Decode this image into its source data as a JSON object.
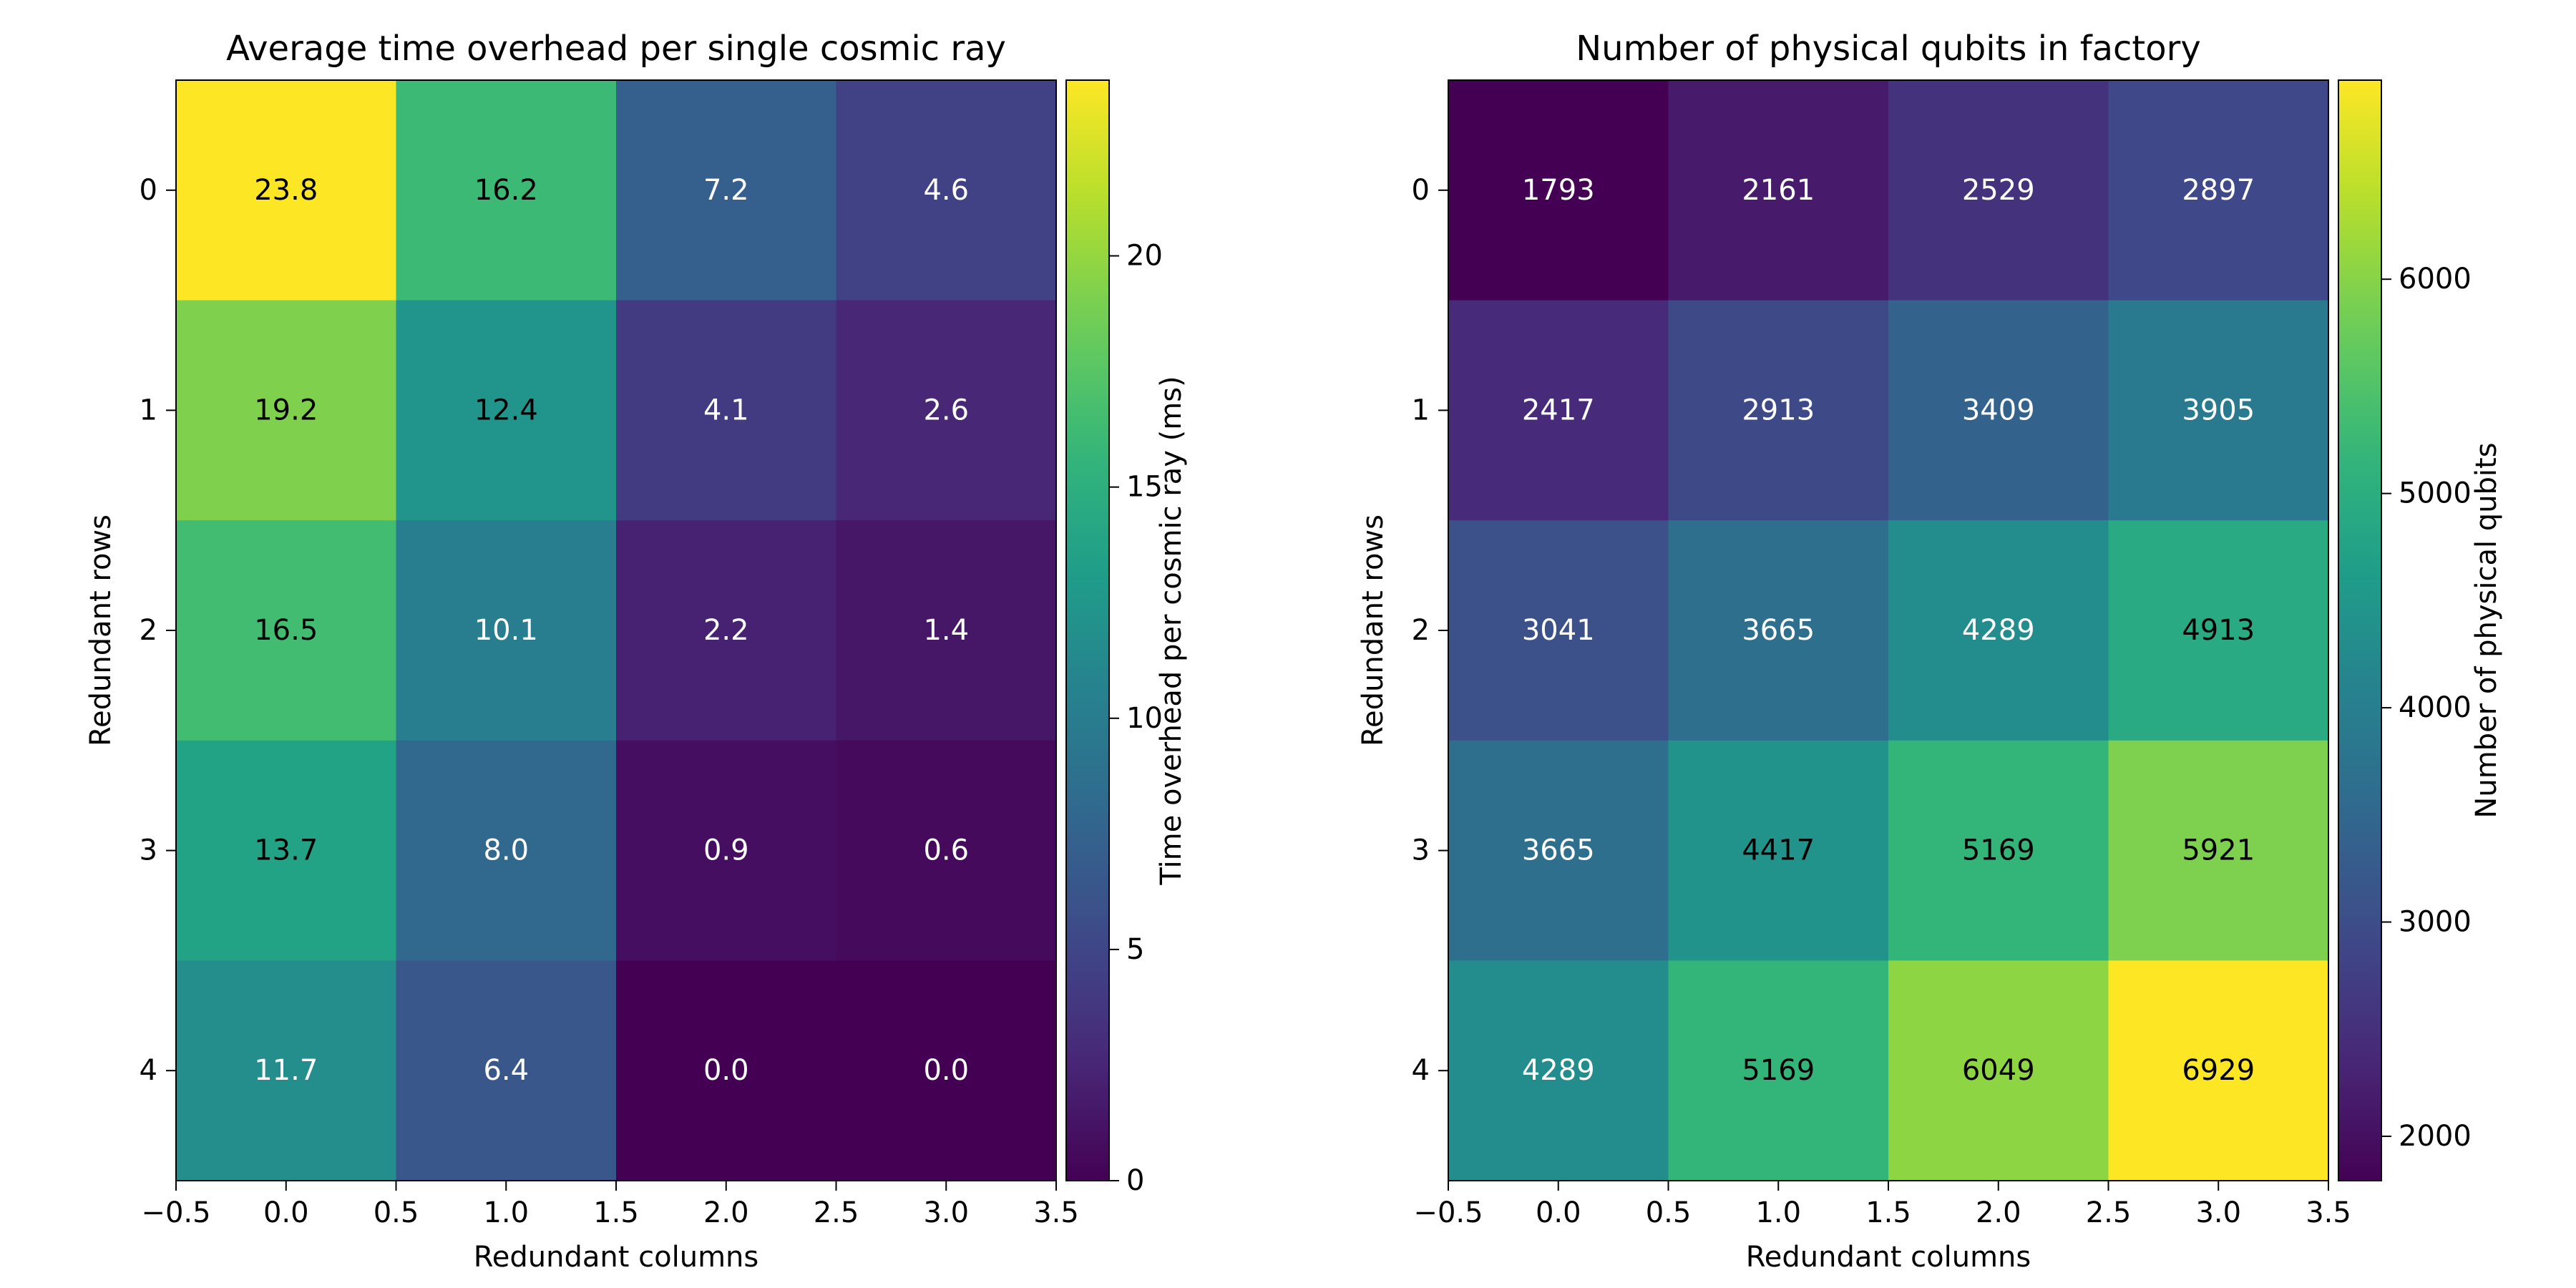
{
  "chart_data": [
    {
      "type": "heatmap",
      "title": "Average time overhead per single cosmic ray",
      "xlabel": "Redundant columns",
      "ylabel": "Redundant rows",
      "x_categories": [
        "0",
        "1",
        "2",
        "3"
      ],
      "y_categories": [
        "0",
        "1",
        "2",
        "3",
        "4"
      ],
      "xlim": [
        -0.5,
        3.5
      ],
      "xticks": [
        "−0.5",
        "0.0",
        "0.5",
        "1.0",
        "1.5",
        "2.0",
        "2.5",
        "3.0",
        "3.5"
      ],
      "yticks": [
        "0",
        "1",
        "2",
        "3",
        "4"
      ],
      "values": [
        [
          23.8,
          16.2,
          7.2,
          4.6
        ],
        [
          19.2,
          12.4,
          4.1,
          2.6
        ],
        [
          16.5,
          10.1,
          2.2,
          1.4
        ],
        [
          13.7,
          8.0,
          0.9,
          0.6
        ],
        [
          11.7,
          6.4,
          0.0,
          0.0
        ]
      ],
      "value_format": "1dp",
      "colormap": "viridis",
      "colorbar": {
        "label": "Time overhead per cosmic ray (ms)",
        "min": 0,
        "max": 23.8,
        "ticks": [
          0,
          5,
          10,
          15,
          20
        ]
      }
    },
    {
      "type": "heatmap",
      "title": "Number of physical qubits in factory",
      "xlabel": "Redundant columns",
      "ylabel": "Redundant rows",
      "x_categories": [
        "0",
        "1",
        "2",
        "3"
      ],
      "y_categories": [
        "0",
        "1",
        "2",
        "3",
        "4"
      ],
      "xlim": [
        -0.5,
        3.5
      ],
      "xticks": [
        "−0.5",
        "0.0",
        "0.5",
        "1.0",
        "1.5",
        "2.0",
        "2.5",
        "3.0",
        "3.5"
      ],
      "yticks": [
        "0",
        "1",
        "2",
        "3",
        "4"
      ],
      "values": [
        [
          1793,
          2161,
          2529,
          2897
        ],
        [
          2417,
          2913,
          3409,
          3905
        ],
        [
          3041,
          3665,
          4289,
          4913
        ],
        [
          3665,
          4417,
          5169,
          5921
        ],
        [
          4289,
          5169,
          6049,
          6929
        ]
      ],
      "value_format": "int",
      "colormap": "viridis",
      "colorbar": {
        "label": "Number of physical qubits",
        "min": 1793,
        "max": 6929,
        "ticks": [
          2000,
          3000,
          4000,
          5000,
          6000
        ]
      }
    }
  ]
}
